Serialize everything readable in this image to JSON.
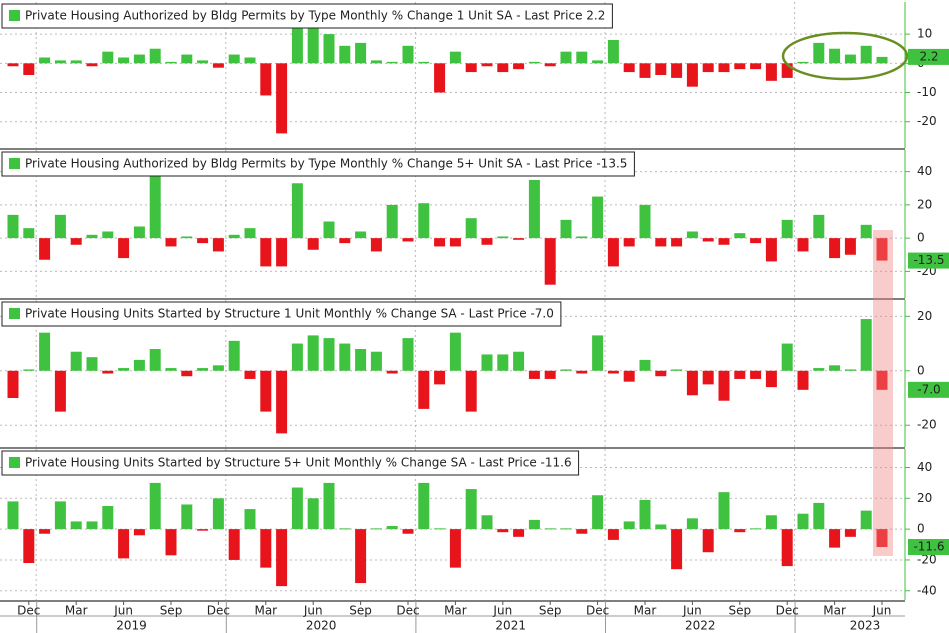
{
  "chart_data": [
    {
      "type": "bar",
      "title": "Private Housing Authorized by Bldg Permits by Type Monthly % Change 1 Unit SA - Last Price 2.2",
      "values": [
        -1,
        -4,
        2,
        1,
        1,
        -1,
        4,
        2,
        3,
        5,
        0.5,
        3,
        1,
        -1.5,
        3,
        2,
        -11,
        -24,
        20,
        15,
        10,
        6,
        7,
        1,
        0.5,
        6,
        0.5,
        -10,
        4,
        -3,
        -1,
        -3,
        -2,
        0.5,
        -1,
        4,
        4,
        1,
        8,
        -3,
        -5,
        -4,
        -5,
        -8,
        -3,
        -3,
        -2,
        -2,
        -6,
        -5,
        0.5,
        7,
        5,
        3,
        6,
        2.2
      ],
      "ylim": [
        -29,
        21
      ],
      "yticks": [
        10,
        0,
        -10,
        -20
      ],
      "last_price": {
        "value": 2.2,
        "label": "2.2"
      },
      "colors": {
        "positive": "#3fc23f",
        "negative": "#e8141c"
      },
      "grid": true
    },
    {
      "type": "bar",
      "title": "Private Housing Authorized by Bldg Permits by Type Monthly % Change 5+ Unit SA - Last Price -13.5",
      "values": [
        14,
        6,
        -13,
        14,
        -4,
        2,
        4,
        -12,
        7,
        38,
        -5,
        1,
        -3,
        -8,
        2,
        6,
        -17,
        -17,
        33,
        -7,
        10,
        -3,
        4,
        -8,
        20,
        -2,
        21,
        -5,
        -5,
        12,
        -4,
        1,
        -1,
        35,
        -28,
        11,
        1,
        25,
        -17,
        -5,
        20,
        -5,
        -5,
        4,
        -2,
        -4,
        3,
        -3,
        -14,
        11,
        -8,
        14,
        -12,
        -10,
        8,
        -13.5
      ],
      "ylim": [
        -36,
        53
      ],
      "yticks": [
        40,
        20,
        0,
        -20
      ],
      "last_price": {
        "value": -13.5,
        "label": "-13.5"
      },
      "colors": {
        "positive": "#3fc23f",
        "negative": "#e8141c"
      },
      "grid": true
    },
    {
      "type": "bar",
      "title": "Private Housing Units Started by Structure 1 Unit Monthly % Change SA - Last Price -7.0",
      "values": [
        -10,
        0.5,
        14,
        -15,
        7,
        5,
        -1,
        1,
        4,
        8,
        1,
        -2,
        1,
        2,
        11,
        -3,
        -15,
        -23,
        10,
        13,
        12,
        10,
        8,
        7,
        -1,
        12,
        -14,
        -5,
        14,
        -15,
        6,
        6,
        7,
        -3,
        -3,
        0.5,
        -1,
        13,
        -1,
        -4,
        4,
        -2,
        0.5,
        -9,
        -5,
        -11,
        -3,
        -3,
        -6,
        10,
        -7,
        1,
        2,
        0.5,
        19,
        -7
      ],
      "ylim": [
        -28,
        26
      ],
      "yticks": [
        20,
        0,
        -20
      ],
      "last_price": {
        "value": -7,
        "label": "-7.0"
      },
      "colors": {
        "positive": "#3fc23f",
        "negative": "#e8141c"
      },
      "grid": true
    },
    {
      "type": "bar",
      "title": "Private Housing Units Started by Structure 5+ Unit Monthly % Change SA - Last Price -11.6",
      "values": [
        18,
        -22,
        -3,
        18,
        5,
        5,
        15,
        -19,
        -4,
        30,
        -17,
        16,
        -1,
        20,
        -20,
        13,
        -25,
        -37,
        27,
        20,
        30,
        0.5,
        -35,
        0.5,
        2,
        -3,
        30,
        0.5,
        -25,
        26,
        9,
        -2,
        -5,
        6,
        0.5,
        0.5,
        -3,
        22,
        -7,
        5,
        19,
        3,
        -26,
        7,
        -15,
        24,
        -2,
        0.5,
        9,
        -24,
        10,
        17,
        -12,
        -5,
        12,
        -11.6
      ],
      "ylim": [
        -46,
        52
      ],
      "yticks": [
        40,
        20,
        0,
        -20,
        -40
      ],
      "last_price": {
        "value": -11.6,
        "label": "-11.6"
      },
      "colors": {
        "positive": "#3fc23f",
        "negative": "#e8141c"
      },
      "grid": true,
      "categories": [
        null,
        "Dec",
        null,
        null,
        "Mar",
        null,
        null,
        "Jun",
        null,
        null,
        "Sep",
        null,
        null,
        "Dec",
        null,
        null,
        "Mar",
        null,
        null,
        "Jun",
        null,
        null,
        "Sep",
        null,
        null,
        "Dec",
        null,
        null,
        "Mar",
        null,
        null,
        "Jun",
        null,
        null,
        "Sep",
        null,
        null,
        "Dec",
        null,
        null,
        "Mar",
        null,
        null,
        "Jun",
        null,
        null,
        "Sep",
        null,
        null,
        "Dec",
        null,
        null,
        "Mar",
        null,
        null,
        "Jun"
      ],
      "year_labels": [
        "2019",
        "2020",
        "2021",
        "2022",
        "2023"
      ]
    }
  ]
}
